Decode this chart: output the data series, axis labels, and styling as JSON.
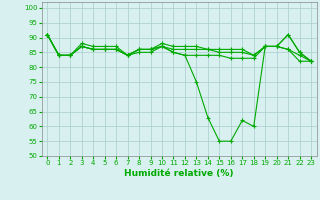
{
  "title": "",
  "xlabel": "Humidité relative (%)",
  "ylabel": "",
  "xlim": [
    -0.5,
    23.5
  ],
  "ylim": [
    50,
    102
  ],
  "yticks": [
    50,
    55,
    60,
    65,
    70,
    75,
    80,
    85,
    90,
    95,
    100
  ],
  "xticks": [
    0,
    1,
    2,
    3,
    4,
    5,
    6,
    7,
    8,
    9,
    10,
    11,
    12,
    13,
    14,
    15,
    16,
    17,
    18,
    19,
    20,
    21,
    22,
    23
  ],
  "background_color": "#d8f0f0",
  "grid_color": "#b0d0d0",
  "line_color": "#00aa00",
  "lines": [
    [
      91,
      84,
      84,
      87,
      86,
      86,
      86,
      84,
      86,
      86,
      87,
      85,
      84,
      75,
      63,
      55,
      55,
      62,
      60,
      87,
      87,
      91,
      85,
      82
    ],
    [
      91,
      84,
      84,
      87,
      86,
      86,
      86,
      84,
      86,
      86,
      87,
      85,
      84,
      84,
      84,
      84,
      83,
      83,
      83,
      87,
      87,
      86,
      82,
      82
    ],
    [
      91,
      84,
      84,
      87,
      86,
      86,
      86,
      84,
      85,
      85,
      87,
      86,
      86,
      86,
      86,
      85,
      85,
      85,
      84,
      87,
      87,
      86,
      84,
      82
    ],
    [
      91,
      84,
      84,
      88,
      87,
      87,
      87,
      84,
      86,
      86,
      88,
      87,
      87,
      87,
      86,
      86,
      86,
      86,
      84,
      87,
      87,
      91,
      85,
      82
    ]
  ]
}
